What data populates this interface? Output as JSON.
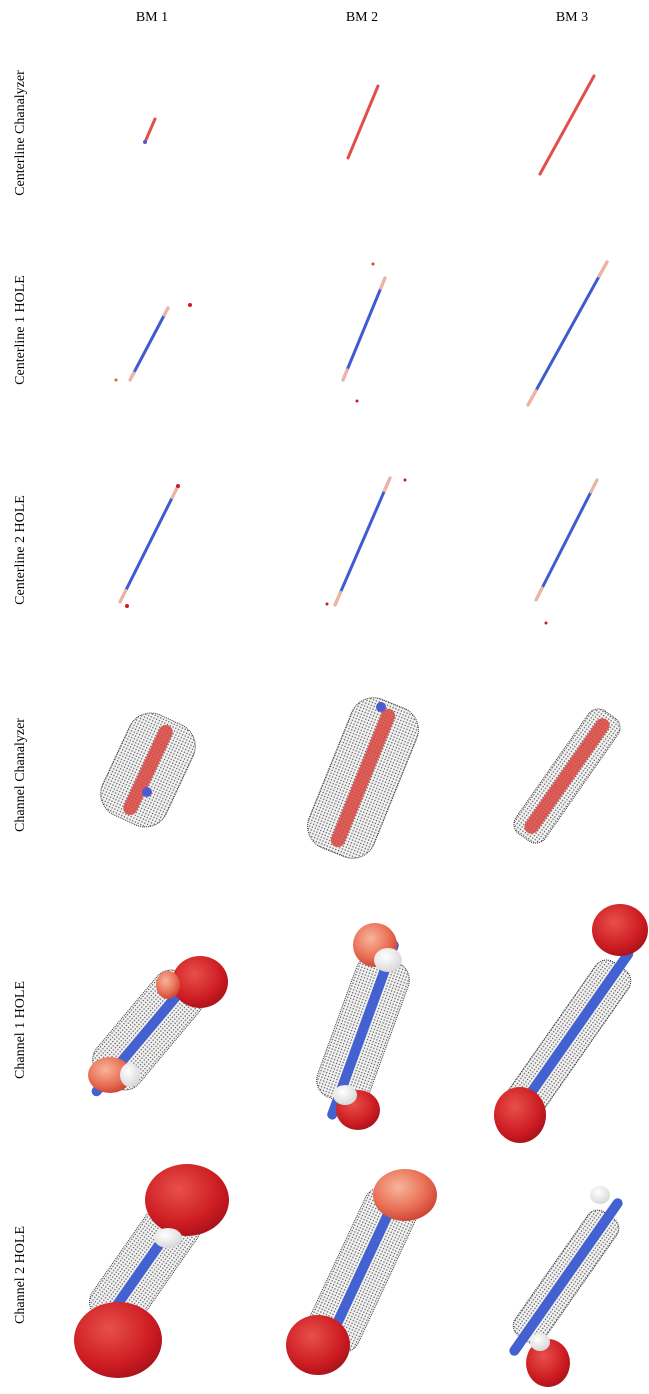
{
  "columns": [
    "BM 1",
    "BM 2",
    "BM 3"
  ],
  "rows": [
    "Centerline Chanalyzer",
    "Centerline 1 HOLE",
    "Centerline 2 HOLE",
    "Channel Chanalyzer",
    "Channel 1 HOLE",
    "Channel 2 HOLE"
  ]
}
